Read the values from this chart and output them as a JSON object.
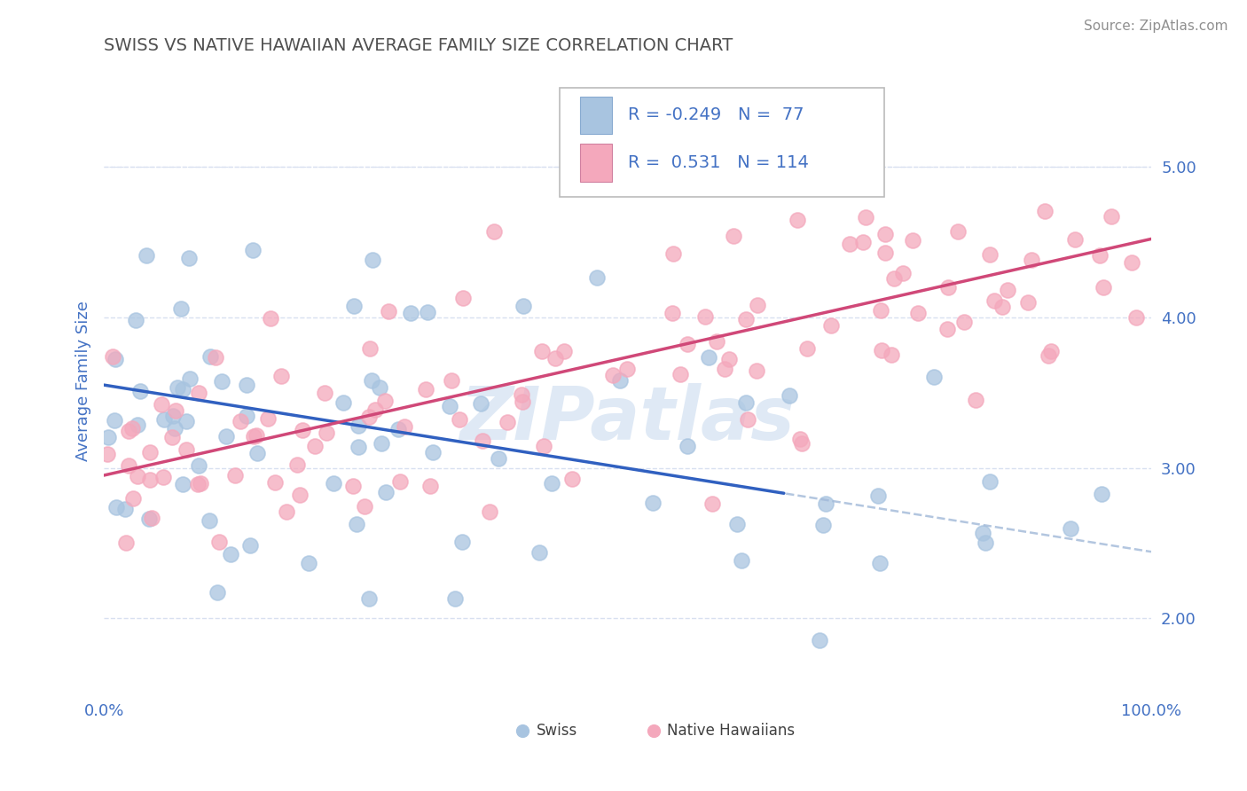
{
  "title": "SWISS VS NATIVE HAWAIIAN AVERAGE FAMILY SIZE CORRELATION CHART",
  "source_text": "Source: ZipAtlas.com",
  "ylabel": "Average Family Size",
  "xlim": [
    0.0,
    100.0
  ],
  "ylim": [
    1.5,
    5.65
  ],
  "yticks": [
    2.0,
    3.0,
    4.0,
    5.0
  ],
  "swiss_color": "#a8c4e0",
  "hawaiian_color": "#f4a8bc",
  "swiss_line_color": "#3060c0",
  "swiss_dash_color": "#a0b8d8",
  "hawaiian_line_color": "#d04878",
  "swiss_R": -0.249,
  "swiss_N": 77,
  "hawaiian_R": 0.531,
  "hawaiian_N": 114,
  "watermark": "ZIPatlas",
  "title_color": "#505050",
  "title_fontsize": 14,
  "axis_color": "#4472c4",
  "grid_color": "#d8e0f0",
  "legend_R_color": "#4472c4",
  "swiss_line_end_x": 65,
  "swiss_start_y": 3.55,
  "swiss_end_y": 2.83,
  "swiss_dash_end_y": 2.35,
  "hawaiian_start_y": 2.95,
  "hawaiian_end_y": 4.52
}
